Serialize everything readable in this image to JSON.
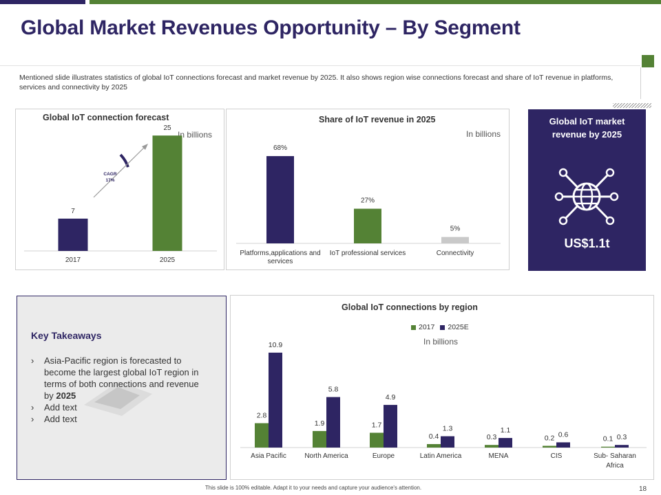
{
  "slide": {
    "title": "Global Market Revenues Opportunity – By Segment",
    "subtitle": "Mentioned slide illustrates statistics of global IoT connections forecast and market revenue by 2025. It also shows region wise connections forecast and share of IoT revenue in platforms, services and connectivity by 2025",
    "footer": "This slide is 100% editable. Adapt it to your needs and capture your audience's attention.",
    "page_number": "18"
  },
  "colors": {
    "purple": "#2e2563",
    "green": "#548235",
    "grey": "#c9c9c9"
  },
  "market_box": {
    "title": "Global IoT market revenue by 2025",
    "value": "US$1.1t",
    "icon": "globe-network-icon"
  },
  "takeaways": {
    "title": "Key Takeaways",
    "bullet": "›",
    "item1_text": "Asia-Pacific region is forecasted to become the largest global IoT region in terms of both connections and revenue by",
    "item1_bold": "2025",
    "item2": "Add text",
    "item3": "Add text"
  },
  "chart_data": [
    {
      "type": "bar",
      "title": "Global IoT connection forecast",
      "unit": "In billions",
      "categories": [
        "2017",
        "2025"
      ],
      "values": [
        7,
        25
      ],
      "labels": [
        "7",
        "25"
      ],
      "bar_colors": [
        "#2e2563",
        "#548235"
      ],
      "ylim": [
        0,
        28
      ],
      "annotation": {
        "line1": "CAGR",
        "line2": "17%"
      }
    },
    {
      "type": "bar",
      "title": "Share of IoT revenue in 2025",
      "unit": "In billions",
      "categories": [
        "Platforms,applications and services",
        "IoT professional services",
        "Connectivity"
      ],
      "values": [
        68,
        27,
        5
      ],
      "labels": [
        "68%",
        "27%",
        "5%"
      ],
      "bar_colors": [
        "#2e2563",
        "#548235",
        "#c9c9c9"
      ],
      "ylim": [
        0,
        75
      ]
    },
    {
      "type": "bar",
      "title": "Global IoT connections  by region",
      "unit": "In billions",
      "categories": [
        "Asia Pacific",
        "North America",
        "Europe",
        "Latin America",
        "MENA",
        "CIS",
        "Sub- Saharan Africa"
      ],
      "series": [
        {
          "name": "2017",
          "values": [
            2.8,
            1.9,
            1.7,
            0.4,
            0.3,
            0.2,
            0.1
          ],
          "labels": [
            "2.8",
            "1.9",
            "1.7",
            "0.4",
            "0.3",
            "0.2",
            "0.1"
          ],
          "color": "#548235"
        },
        {
          "name": "2025E",
          "values": [
            10.9,
            5.8,
            4.9,
            1.3,
            1.1,
            0.6,
            0.3
          ],
          "labels": [
            "10.9",
            "5.8",
            "4.9",
            "1.3",
            "1.1",
            "0.6",
            "0.3"
          ],
          "color": "#2e2563"
        }
      ],
      "legend": "top-center",
      "ylim": [
        0,
        12
      ]
    }
  ]
}
